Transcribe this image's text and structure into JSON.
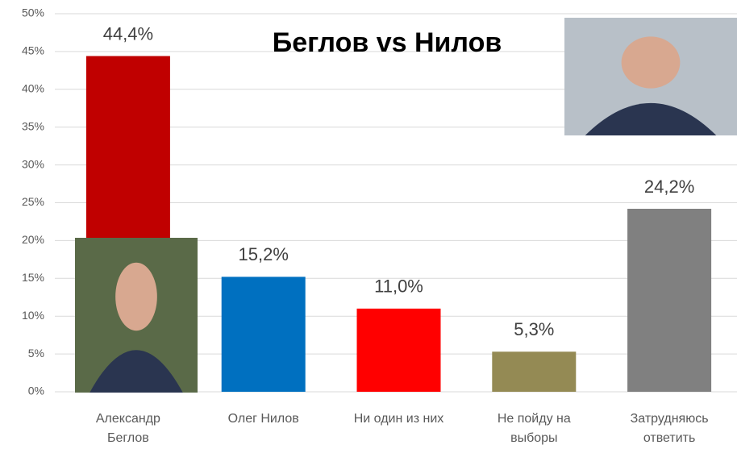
{
  "chart_data": {
    "type": "bar",
    "title": "Беглов vs Нилов",
    "categories": [
      "Александр Беглов",
      "Олег Нилов",
      "Ни один из них",
      "Не пойду на выборы",
      "Затрудняюсь ответить"
    ],
    "values": [
      44.4,
      15.2,
      11.0,
      5.3,
      24.2
    ],
    "value_labels": [
      "44,4%",
      "15,2%",
      "11,0%",
      "5,3%",
      "24,2%"
    ],
    "colors": [
      "#c00000",
      "#0070c0",
      "#ff0000",
      "#948a54",
      "#808080"
    ],
    "ylim": [
      0,
      50
    ],
    "yticks": [
      {
        "value": 0,
        "label": "0%"
      },
      {
        "value": 5,
        "label": "5%"
      },
      {
        "value": 10,
        "label": "10%"
      },
      {
        "value": 15,
        "label": "15%"
      },
      {
        "value": 20,
        "label": "20%"
      },
      {
        "value": 25,
        "label": "25%"
      },
      {
        "value": 30,
        "label": "30%"
      },
      {
        "value": 35,
        "label": "35%"
      },
      {
        "value": 40,
        "label": "40%"
      },
      {
        "value": 45,
        "label": "45%"
      },
      {
        "value": 50,
        "label": "50%"
      }
    ],
    "grid": true
  }
}
